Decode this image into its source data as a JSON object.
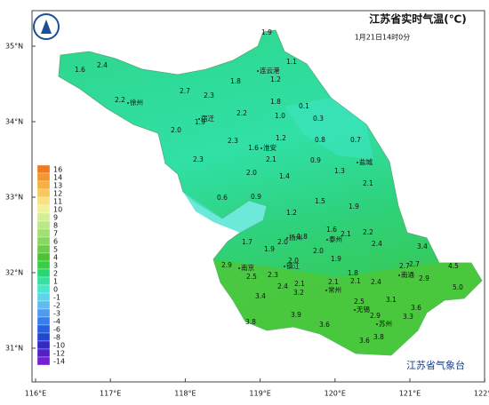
{
  "title": "江苏省实时气温(℃)",
  "time": "1月21日14时0分",
  "footer": "江苏省气象台",
  "lat_labels": [
    "35°N",
    "34°N",
    "33°N",
    "32°N",
    "31°N"
  ],
  "lon_labels": [
    "116°E",
    "117°E",
    "118°E",
    "119°E",
    "120°E",
    "121°E",
    "122°E"
  ],
  "legend": {
    "labels": [
      16,
      14,
      13,
      12,
      11,
      10,
      9,
      8,
      7,
      6,
      5,
      4,
      3,
      2,
      1,
      0,
      -1,
      -2,
      -3,
      -4,
      -6,
      -8,
      -10,
      -12,
      -14
    ],
    "colors": [
      "#f07a20",
      "#f4962e",
      "#f7b040",
      "#f8c858",
      "#f9e080",
      "#eef29a",
      "#d4ee94",
      "#bae886",
      "#a0e070",
      "#86d85e",
      "#6acc4a",
      "#4ec232",
      "#36d048",
      "#2ad672",
      "#34e2a0",
      "#46e8c8",
      "#5cd6ec",
      "#62baf2",
      "#4e9cf0",
      "#347ef0",
      "#2660e0",
      "#2444d2",
      "#3428c8",
      "#5220c4",
      "#7420d2"
    ]
  },
  "cities": [
    "连云港",
    "徐州",
    "宿迁",
    "淮安",
    "盐城",
    "扬州",
    "泰州",
    "南京",
    "镇江",
    "南通",
    "常州",
    "无锡",
    "苏州"
  ],
  "stations": [
    "1.9",
    "1.1",
    "1.6",
    "2.4",
    "1.2",
    "1.8",
    "2.7",
    "2.3",
    "2.2",
    "1.8",
    "0.1",
    "2.2",
    "1.0",
    "0.3",
    "2.0",
    "1.9",
    "0.7",
    "1.2",
    "0.8",
    "2.3",
    "1.6",
    "2.1",
    "2.3",
    "0.9",
    "1.3",
    "2.0",
    "1.4",
    "0.6",
    "0.9",
    "2.1",
    "1.5",
    "1.9",
    "1.2",
    "1.6",
    "2.1",
    "2.2",
    "1.7",
    "2.0",
    "1.9",
    "1.8",
    "2.4",
    "3.4",
    "2.0",
    "1.9",
    "2.9",
    "2.0",
    "2.5",
    "2.3",
    "1.8",
    "2.1",
    "2.1",
    "2.1",
    "2.7",
    "2.7",
    "4.5",
    "2.9",
    "5.0",
    "2.4",
    "2.4",
    "3.4",
    "3.2",
    "3.1",
    "2.5",
    "3.6",
    "3.9",
    "2.9",
    "3.3",
    "3.8",
    "3.6",
    "3.8",
    "3.6"
  ]
}
